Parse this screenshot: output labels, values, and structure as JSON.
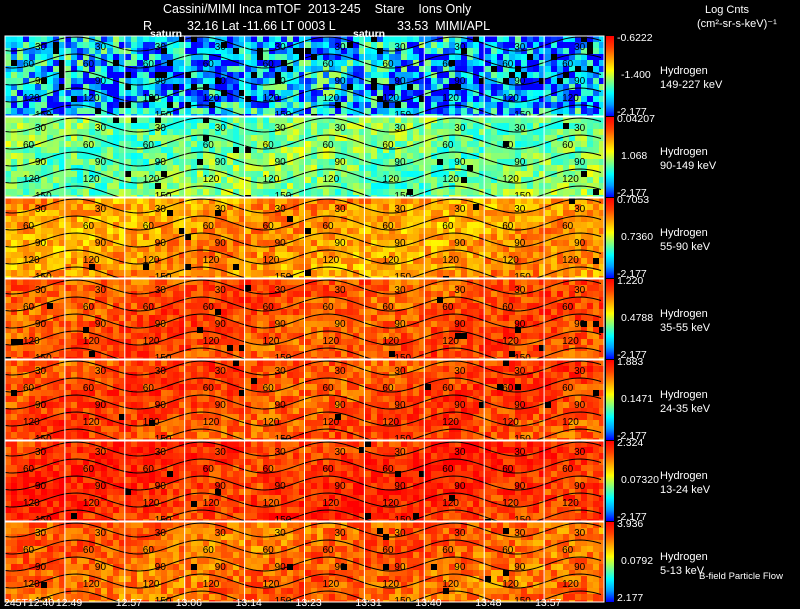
{
  "header": {
    "title": "Cassini/MIMI Inca mTOF  2013-245    Stare    Ions Only",
    "subtitle_left": "R",
    "subtitle_mid": "32.16 Lat -11.66 LT 0003 L",
    "subtitle_right": "33.53  MIMI/APL",
    "units_line1": "Log Cnts",
    "units_line2": "(cm²-sr-s-keV)⁻¹",
    "saturn_marker": "saturn"
  },
  "footer": {
    "time_labels": [
      "245T12:40",
      "12:49",
      "12:57",
      "13:06",
      "13:14",
      "13:23",
      "13:31",
      "13:40",
      "13:48",
      "13:57"
    ],
    "note": "B-field Particle Flow"
  },
  "chart_data": {
    "type": "heatmap",
    "title": "Cassini/MIMI Inca mTOF  2013-245    Stare    Ions Only",
    "x_tick_labels": [
      "245T12:40",
      "12:49",
      "12:57",
      "13:06",
      "13:14",
      "13:23",
      "13:31",
      "13:40",
      "13:48",
      "13:57"
    ],
    "contour_labels": [
      "30",
      "60",
      "90",
      "120",
      "150"
    ],
    "colorbar_label": "Log Cnts (cm²-sr-s-keV)⁻¹",
    "colormap": [
      "#0000ff",
      "#00a0ff",
      "#00ffff",
      "#80ff80",
      "#ffff00",
      "#ffa000",
      "#ff4000",
      "#ff0000"
    ],
    "panels": [
      {
        "species": "Hydrogen",
        "energy": "149-227 keV",
        "cb_max": "-0.6222",
        "cb_mid": "-1.400",
        "cb_min": "-2.177",
        "mean_level": 0.18
      },
      {
        "species": "Hydrogen",
        "energy": "90-149 keV",
        "cb_max": "0.04207",
        "cb_mid": "1.068",
        "cb_min": "-2.177",
        "mean_level": 0.42
      },
      {
        "species": "Hydrogen",
        "energy": "55-90 keV",
        "cb_max": "0.7053",
        "cb_mid": "0.7360",
        "cb_min": "-2.177",
        "mean_level": 0.72
      },
      {
        "species": "Hydrogen",
        "energy": "35-55 keV",
        "cb_max": "1.220",
        "cb_mid": "0.4788",
        "cb_min": "-2.177",
        "mean_level": 0.84
      },
      {
        "species": "Hydrogen",
        "energy": "24-35 keV",
        "cb_max": "1.883",
        "cb_mid": "0.1471",
        "cb_min": "-2.177",
        "mean_level": 0.85
      },
      {
        "species": "Hydrogen",
        "energy": "13-24 keV",
        "cb_max": "2.324",
        "cb_mid": "0.07320",
        "cb_min": "-2.177",
        "mean_level": 0.9
      },
      {
        "species": "Hydrogen",
        "energy": "5-13 keV",
        "cb_max": "3.936",
        "cb_mid": "0.0792",
        "cb_min": "2.177",
        "mean_level": 0.8
      }
    ]
  }
}
